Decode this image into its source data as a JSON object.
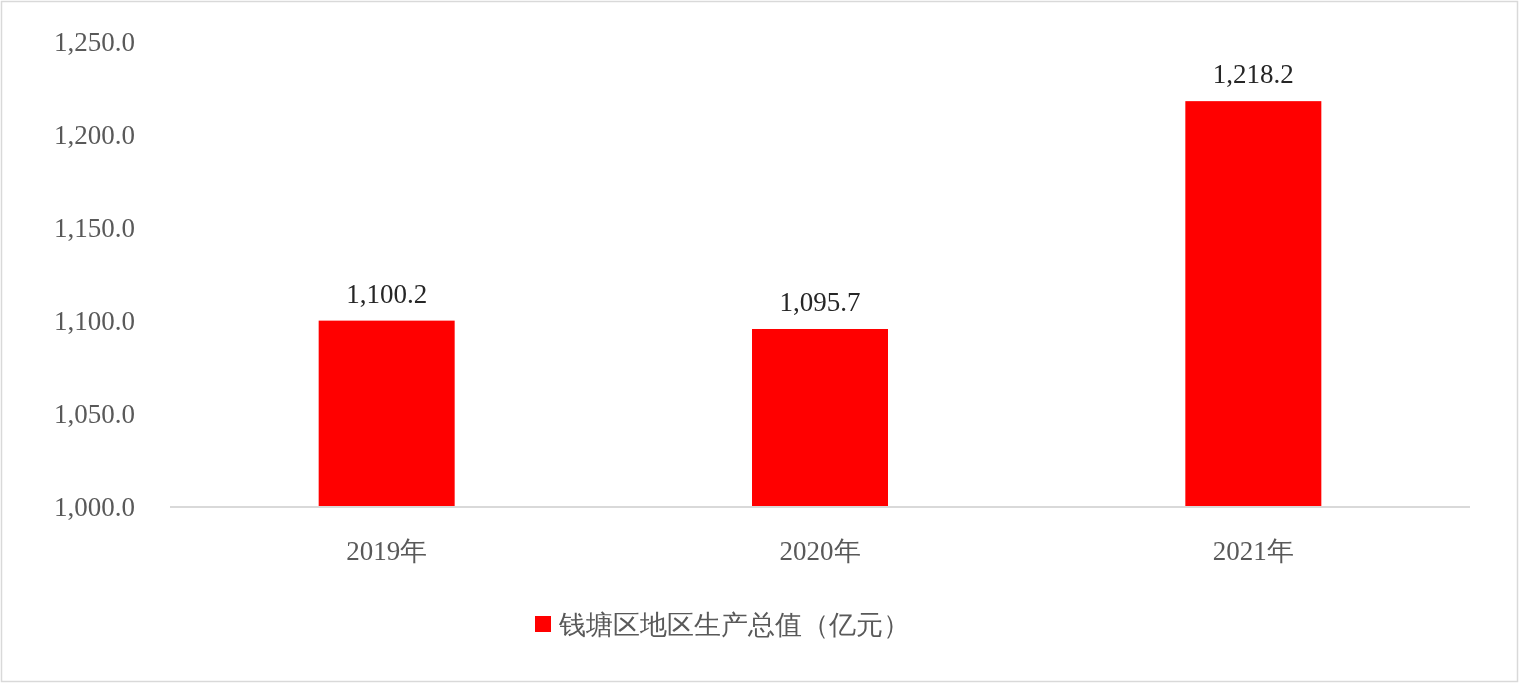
{
  "chart_data": {
    "type": "bar",
    "categories": [
      "2019年",
      "2020年",
      "2021年"
    ],
    "series": [
      {
        "name": "钱塘区地区生产总值（亿元）",
        "color": "#ff0000",
        "values": [
          1100.2,
          1095.7,
          1218.2
        ],
        "value_labels": [
          "1,100.2",
          "1,095.7",
          "1,218.2"
        ]
      }
    ],
    "ylim": [
      1000,
      1250
    ],
    "yticks": [
      {
        "value": 1000,
        "label": "1,000.0"
      },
      {
        "value": 1050,
        "label": "1,050.0"
      },
      {
        "value": 1100,
        "label": "1,100.0"
      },
      {
        "value": 1150,
        "label": "1,150.0"
      },
      {
        "value": 1200,
        "label": "1,200.0"
      },
      {
        "value": 1250,
        "label": "1,250.0"
      }
    ],
    "grid": false,
    "legend": "bottom"
  }
}
